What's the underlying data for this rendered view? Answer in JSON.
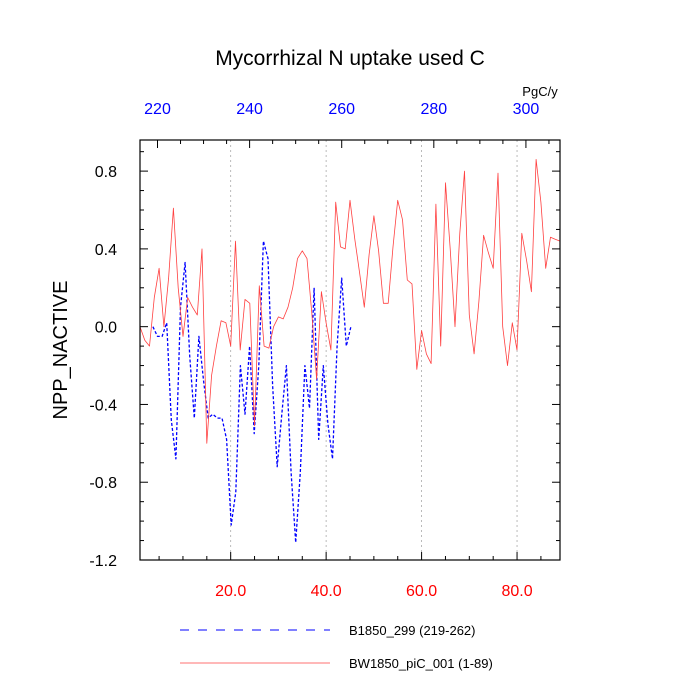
{
  "chart_data": {
    "type": "line",
    "title": "Mycorrhizal N uptake used C",
    "ylabel": "NPP_NACTIVE",
    "top_axis_unit": "PgC/y",
    "ylim": [
      -1.2,
      0.96
    ],
    "xlim": [
      1,
      89
    ],
    "top_xlim": [
      216.2,
      307.4
    ],
    "y_ticks": [
      "0.8",
      "0.4",
      "0.0",
      "-0.4",
      "-0.8",
      "-1.2"
    ],
    "y_tick_values": [
      0.8,
      0.4,
      0.0,
      -0.4,
      -0.8,
      -1.2
    ],
    "x_ticks": [
      "20.0",
      "40.0",
      "60.0",
      "80.0"
    ],
    "x_tick_values": [
      20,
      40,
      60,
      80
    ],
    "top_x_ticks": [
      "220",
      "240",
      "260",
      "280",
      "300"
    ],
    "top_x_tick_values": [
      220,
      240,
      260,
      280,
      300
    ],
    "grid": "vertical dashed at x ticks",
    "legend_position": "bottom",
    "colors": {
      "series_1": "#0000ff",
      "series_2": "#ff4040",
      "bottom_ticks": "#ff0000",
      "top_ticks": "#0000ff",
      "grid": "#aaaaaa"
    },
    "series": [
      {
        "name": "B1850_299 (219-262)",
        "style": "dashed",
        "x": [
          219,
          220,
          221,
          222,
          223,
          224,
          225,
          226,
          227,
          228,
          229,
          230,
          231,
          232,
          233,
          234,
          235,
          236,
          237,
          238,
          239,
          240,
          241,
          242,
          243,
          244,
          245,
          246,
          247,
          248,
          249,
          250,
          251,
          252,
          253,
          254,
          255,
          256,
          257,
          258,
          259,
          260,
          261,
          262
        ],
        "y": [
          0.0,
          -0.05,
          -0.05,
          0.02,
          -0.48,
          -0.68,
          0.1,
          0.33,
          -0.15,
          -0.47,
          -0.05,
          -0.28,
          -0.47,
          -0.45,
          -0.47,
          -0.47,
          -0.58,
          -1.02,
          -0.85,
          -0.2,
          -0.45,
          -0.1,
          -0.55,
          -0.2,
          0.44,
          0.35,
          -0.3,
          -0.72,
          -0.45,
          -0.2,
          -0.75,
          -1.11,
          -0.75,
          -0.2,
          -0.42,
          0.2,
          -0.58,
          -0.2,
          -0.5,
          -0.68,
          -0.1,
          0.25,
          -0.1,
          0.0
        ]
      },
      {
        "name": "BW1850_piC_001 (1-89)",
        "style": "solid",
        "x": [
          1,
          2,
          3,
          4,
          5,
          6,
          7,
          8,
          9,
          10,
          11,
          12,
          13,
          14,
          15,
          16,
          17,
          18,
          19,
          20,
          21,
          22,
          23,
          24,
          25,
          26,
          27,
          28,
          29,
          30,
          31,
          32,
          33,
          34,
          35,
          36,
          37,
          38,
          39,
          40,
          41,
          42,
          43,
          44,
          45,
          46,
          47,
          48,
          49,
          50,
          51,
          52,
          53,
          54,
          55,
          56,
          57,
          58,
          59,
          60,
          61,
          62,
          63,
          64,
          65,
          66,
          67,
          68,
          69,
          70,
          71,
          72,
          73,
          74,
          75,
          76,
          77,
          78,
          79,
          80,
          81,
          82,
          83,
          84,
          85,
          86,
          87,
          88,
          89
        ],
        "y": [
          0.0,
          -0.07,
          -0.1,
          0.15,
          0.3,
          0.0,
          0.25,
          0.61,
          0.2,
          -0.05,
          0.15,
          0.1,
          0.06,
          0.4,
          -0.6,
          -0.25,
          -0.1,
          0.03,
          0.02,
          -0.1,
          0.44,
          -0.12,
          0.14,
          0.12,
          -0.51,
          0.21,
          -0.1,
          -0.11,
          0.0,
          0.05,
          0.04,
          0.1,
          0.2,
          0.35,
          0.39,
          0.35,
          0.07,
          -0.27,
          0.18,
          0.02,
          -0.12,
          0.64,
          0.41,
          0.4,
          0.65,
          0.45,
          0.28,
          0.1,
          0.37,
          0.57,
          0.39,
          0.12,
          0.12,
          0.41,
          0.65,
          0.55,
          0.24,
          0.22,
          -0.22,
          -0.02,
          -0.14,
          -0.19,
          0.63,
          -0.1,
          0.74,
          0.4,
          0.0,
          0.48,
          0.8,
          0.06,
          -0.14,
          0.13,
          0.47,
          0.38,
          0.3,
          0.79,
          0.0,
          -0.2,
          0.02,
          -0.12,
          0.48,
          0.34,
          0.18,
          0.86,
          0.64,
          0.3,
          0.46,
          0.45,
          0.44
        ]
      }
    ]
  }
}
